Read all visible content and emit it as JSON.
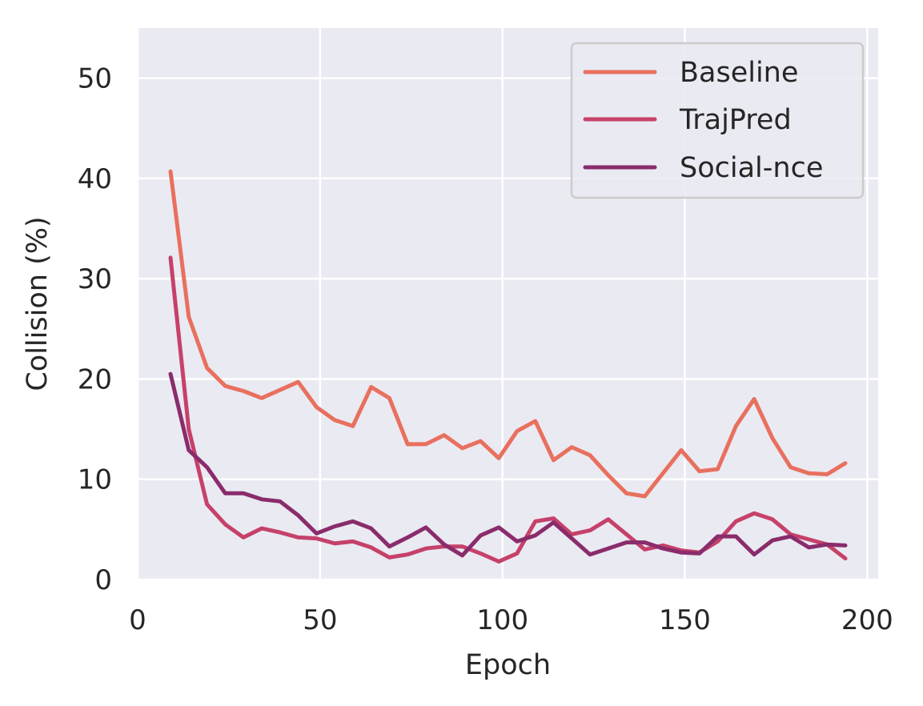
{
  "chart_data": {
    "type": "line",
    "title": "",
    "xlabel": "Epoch",
    "ylabel": "Collision (%)",
    "xlim": [
      0,
      203
    ],
    "ylim": [
      0,
      55
    ],
    "xticks": [
      0,
      50,
      100,
      150,
      200
    ],
    "yticks": [
      0,
      10,
      20,
      30,
      40,
      50
    ],
    "grid": true,
    "legend_position": "top-right",
    "x": [
      9,
      14,
      19,
      24,
      29,
      34,
      39,
      44,
      49,
      54,
      59,
      64,
      69,
      74,
      79,
      84,
      89,
      94,
      99,
      104,
      109,
      114,
      119,
      124,
      129,
      134,
      139,
      144,
      149,
      154,
      159,
      164,
      169,
      174,
      179,
      184,
      189,
      194
    ],
    "series": [
      {
        "name": "Baseline",
        "color": "#e8705f",
        "values": [
          40.7,
          26.2,
          21.1,
          19.3,
          18.8,
          18.1,
          18.9,
          19.7,
          17.2,
          15.9,
          15.3,
          19.2,
          18.1,
          13.5,
          13.5,
          14.4,
          13.1,
          13.8,
          12.1,
          14.8,
          15.8,
          11.9,
          13.2,
          12.4,
          10.4,
          8.6,
          8.3,
          10.6,
          12.9,
          10.8,
          11.0,
          15.3,
          18.0,
          14.1,
          11.2,
          10.6,
          10.5,
          11.6
        ]
      },
      {
        "name": "TrajPred",
        "color": "#c6416a",
        "values": [
          32.1,
          15.0,
          7.5,
          5.5,
          4.2,
          5.1,
          4.7,
          4.2,
          4.1,
          3.6,
          3.8,
          3.2,
          2.2,
          2.5,
          3.1,
          3.3,
          3.3,
          2.6,
          1.8,
          2.6,
          5.8,
          6.1,
          4.5,
          4.9,
          6.0,
          4.5,
          3.0,
          3.4,
          2.9,
          2.7,
          3.8,
          5.8,
          6.6,
          6.0,
          4.5,
          4.0,
          3.5,
          2.1
        ]
      },
      {
        "name": "Social-nce",
        "color": "#8a2c6c",
        "values": [
          20.5,
          12.9,
          11.2,
          8.6,
          8.6,
          8.0,
          7.8,
          6.4,
          4.6,
          5.3,
          5.8,
          5.1,
          3.3,
          4.2,
          5.2,
          3.5,
          2.4,
          4.4,
          5.2,
          3.8,
          4.4,
          5.7,
          4.1,
          2.5,
          3.1,
          3.7,
          3.7,
          3.1,
          2.7,
          2.6,
          4.3,
          4.3,
          2.5,
          3.9,
          4.3,
          3.2,
          3.5,
          3.4
        ]
      }
    ]
  },
  "colors": {
    "background": "#ffffff",
    "plot_area": "#eaeaf2",
    "grid": "#ffffff",
    "text": "#262626"
  }
}
